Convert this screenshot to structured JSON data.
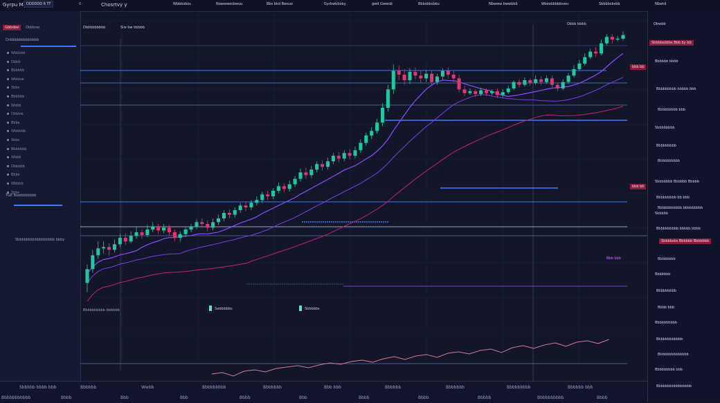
{
  "window": {
    "title": "Gyrpu Mortby",
    "menu_glyph": "8 ·"
  },
  "topbar": {
    "left_tag": "DDDDDD 6 TT",
    "center_title": "Chosrtvy y",
    "tabs": [
      "Wbbbsbos",
      "Nowwwesbwuu",
      "Bbs bkd Bwsuo",
      "Gyrbwbboby",
      "gwd Gwwsb",
      "Bbbsbbsbbu",
      "Nbwww bwwbbb",
      "Woosbbbbbswu",
      "Sbbbbsbsbb"
    ],
    "right_label": "Nbwtd"
  },
  "toolbar_tags": {
    "a": "Gbbsbw",
    "b": "Obbbsw"
  },
  "left_panel": {
    "header": "Dnbbbbbbbbbbbbb",
    "rows": [
      "Wbbbbs",
      "Dbbb",
      "Bbbbbb",
      "Wbbbw",
      "Sbbs",
      "Bbbbbb",
      "Wbbb",
      "Dbbbw",
      "Bbbs",
      "Wbbbbb",
      "Sbbs",
      "Bbbbbbb",
      "Wbbb",
      "Dbbbbb",
      "Bbbs",
      "Wbbbb",
      "Sbbs"
    ],
    "footer": "TGE Bowbbbbbbb",
    "separator_label": "Sbbbbbbbbbbbbbbbbb bbby"
  },
  "chart": {
    "title_label": "Dbbbbbbbbb",
    "title_right": "Slw bw bbbbb",
    "watermark_label": "Sbbbbbbbb",
    "mid_label": "Bbbbbbbbbb bbbbbb",
    "label_a": "Swbbbbbs",
    "label_b": "Sbbbbbs",
    "tags": {
      "t1": "bbb bb",
      "t2": "bbb bb",
      "price_hi": "Obbb bbbb",
      "sep1": "Bbbbbb bbbbb bbb",
      "sep2": "Bbb bbb"
    }
  },
  "right_panel": {
    "header": "Obwbb",
    "subheader": "Bbbbbbbbbb",
    "highlight_1": "Sbbbbsbbbs Bbb by bb",
    "highlight_2": "Sbbbbsbs Bbbbbb Bbbbbbb",
    "items": [
      "Bbbbbb bbbb",
      "Bbbbbbbbb bbbbb bbb",
      "Bbbbbbbbb bbb",
      "Sbbbbbbbb",
      "Bbbbbbbbb",
      "Bbbbbbbbbb",
      "Sbbbbbbb Bbbbbb Bbbbb",
      "Bbbbbbbbb bb bbb",
      "Bbbbbbbbbbb bbbbbbbbb",
      "Sbbbbb",
      "Bbbbbbbbbb bbbbb bbbb",
      "Bbbbbbbb",
      "Bbbbbbb",
      "Bbbbbbbbb",
      "Bbbb bbb",
      "Bbbbbbbbbb",
      "Bbbbbbbbbbbb",
      "Bbbbbbbbbbbbbb",
      "Bbbbbbbbb bbb",
      "Bbbbbbbbbbbbbbbb"
    ]
  },
  "bottombar": {
    "time_labels": [
      "Sbbbbb bbbb bbb",
      "Bbbbbb",
      "Wwbb",
      "Bbbbbbbbb",
      "Bbbbbbb",
      "Bbb bbb",
      "Bbbbbb",
      "Bbbbbbb",
      "Bbbbbbbbb",
      "Bbbbbb bbb"
    ],
    "row2_labels": [
      "Bbbbbbbbbbb",
      "Bbbb",
      "Bbb",
      "Bbb",
      "Bbbb",
      "Bbb",
      "Bbbb",
      "Bbbb",
      "Bbbbb",
      "Bbbbbbbbbb",
      "Bbbb"
    ]
  },
  "colors": {
    "bg": "#131629",
    "bull": "#22c7a0",
    "bear": "#e0356f",
    "blue": "#3a7bff",
    "purple": "#8a4bff",
    "magenta": "#c01e78",
    "accent_tag": "#8b1d3f"
  },
  "chart_data": {
    "type": "candlestick",
    "candles": [
      [
        240,
        270,
        220,
        280
      ],
      [
        270,
        300,
        262,
        312
      ],
      [
        300,
        315,
        292,
        330
      ],
      [
        315,
        318,
        304,
        330
      ],
      [
        318,
        312,
        300,
        326
      ],
      [
        312,
        324,
        306,
        334
      ],
      [
        324,
        338,
        318,
        346
      ],
      [
        338,
        330,
        322,
        348
      ],
      [
        330,
        342,
        326,
        352
      ],
      [
        342,
        350,
        336,
        362
      ],
      [
        350,
        344,
        336,
        356
      ],
      [
        344,
        356,
        340,
        366
      ],
      [
        356,
        362,
        350,
        372
      ],
      [
        362,
        354,
        346,
        368
      ],
      [
        354,
        360,
        348,
        368
      ],
      [
        360,
        350,
        342,
        366
      ],
      [
        350,
        338,
        330,
        356
      ],
      [
        338,
        346,
        330,
        352
      ],
      [
        346,
        356,
        340,
        362
      ],
      [
        356,
        362,
        350,
        368
      ],
      [
        362,
        372,
        356,
        378
      ],
      [
        372,
        368,
        360,
        380
      ],
      [
        368,
        360,
        352,
        376
      ],
      [
        360,
        372,
        354,
        380
      ],
      [
        372,
        380,
        366,
        388
      ],
      [
        380,
        392,
        374,
        398
      ],
      [
        392,
        388,
        380,
        400
      ],
      [
        388,
        398,
        382,
        404
      ],
      [
        398,
        408,
        392,
        414
      ],
      [
        408,
        404,
        396,
        416
      ],
      [
        404,
        414,
        398,
        420
      ],
      [
        414,
        420,
        408,
        428
      ],
      [
        420,
        432,
        414,
        438
      ],
      [
        432,
        428,
        420,
        440
      ],
      [
        428,
        440,
        422,
        446
      ],
      [
        440,
        450,
        434,
        458
      ],
      [
        450,
        444,
        436,
        456
      ],
      [
        444,
        454,
        438,
        462
      ],
      [
        454,
        466,
        448,
        472
      ],
      [
        466,
        480,
        460,
        488
      ],
      [
        480,
        474,
        466,
        490
      ],
      [
        474,
        486,
        468,
        494
      ],
      [
        486,
        498,
        480,
        504
      ],
      [
        498,
        492,
        484,
        506
      ],
      [
        492,
        504,
        486,
        512
      ],
      [
        504,
        516,
        498,
        522
      ],
      [
        516,
        510,
        502,
        524
      ],
      [
        510,
        522,
        504,
        528
      ],
      [
        522,
        516,
        508,
        530
      ],
      [
        516,
        528,
        510,
        536
      ],
      [
        528,
        544,
        522,
        552
      ],
      [
        544,
        560,
        538,
        566
      ],
      [
        560,
        570,
        552,
        578
      ],
      [
        570,
        588,
        564,
        596
      ],
      [
        588,
        620,
        580,
        630
      ],
      [
        620,
        660,
        612,
        670
      ],
      [
        660,
        700,
        650,
        714
      ],
      [
        700,
        692,
        680,
        712
      ],
      [
        692,
        680,
        670,
        704
      ],
      [
        680,
        698,
        672,
        706
      ],
      [
        698,
        690,
        682,
        708
      ],
      [
        690,
        684,
        674,
        700
      ],
      [
        684,
        694,
        676,
        702
      ],
      [
        694,
        676,
        668,
        700
      ],
      [
        676,
        688,
        670,
        694
      ],
      [
        688,
        700,
        680,
        706
      ],
      [
        700,
        692,
        684,
        708
      ],
      [
        692,
        684,
        676,
        700
      ],
      [
        684,
        660,
        654,
        692
      ],
      [
        660,
        652,
        646,
        668
      ],
      [
        652,
        656,
        648,
        662
      ],
      [
        656,
        650,
        644,
        660
      ],
      [
        650,
        658,
        646,
        664
      ],
      [
        658,
        652,
        646,
        662
      ],
      [
        652,
        656,
        648,
        660
      ],
      [
        656,
        648,
        642,
        662
      ],
      [
        648,
        654,
        644,
        660
      ],
      [
        654,
        662,
        650,
        668
      ],
      [
        662,
        676,
        658,
        680
      ],
      [
        676,
        670,
        664,
        682
      ],
      [
        670,
        680,
        666,
        686
      ],
      [
        680,
        674,
        668,
        684
      ],
      [
        674,
        682,
        670,
        690
      ],
      [
        682,
        676,
        670,
        688
      ],
      [
        676,
        684,
        672,
        690
      ],
      [
        684,
        670,
        664,
        690
      ],
      [
        670,
        662,
        656,
        674
      ],
      [
        662,
        676,
        658,
        682
      ],
      [
        676,
        690,
        672,
        696
      ],
      [
        690,
        704,
        686,
        712
      ],
      [
        704,
        716,
        700,
        724
      ],
      [
        716,
        730,
        712,
        738
      ],
      [
        730,
        742,
        726,
        748
      ],
      [
        742,
        738,
        730,
        752
      ],
      [
        738,
        760,
        734,
        768
      ],
      [
        760,
        774,
        756,
        780
      ],
      [
        774,
        768,
        760,
        780
      ],
      [
        768,
        770,
        764,
        776
      ],
      [
        770,
        778,
        766,
        786
      ]
    ],
    "ylim": [
      200,
      800
    ]
  }
}
